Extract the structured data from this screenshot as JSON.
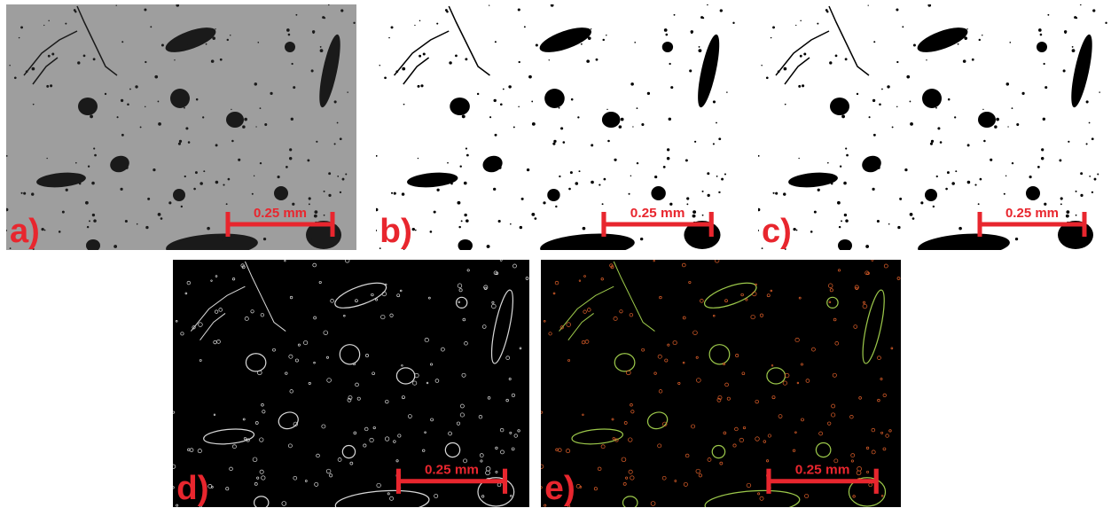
{
  "panels": [
    {
      "label": "a)",
      "scale_bar": "0.25 mm"
    },
    {
      "label": "b)",
      "scale_bar": "0.25 mm"
    },
    {
      "label": "c)",
      "scale_bar": "0.25 mm"
    },
    {
      "label": "d)",
      "scale_bar": "0.25 mm"
    },
    {
      "label": "e)",
      "scale_bar": "0.25 mm"
    }
  ]
}
